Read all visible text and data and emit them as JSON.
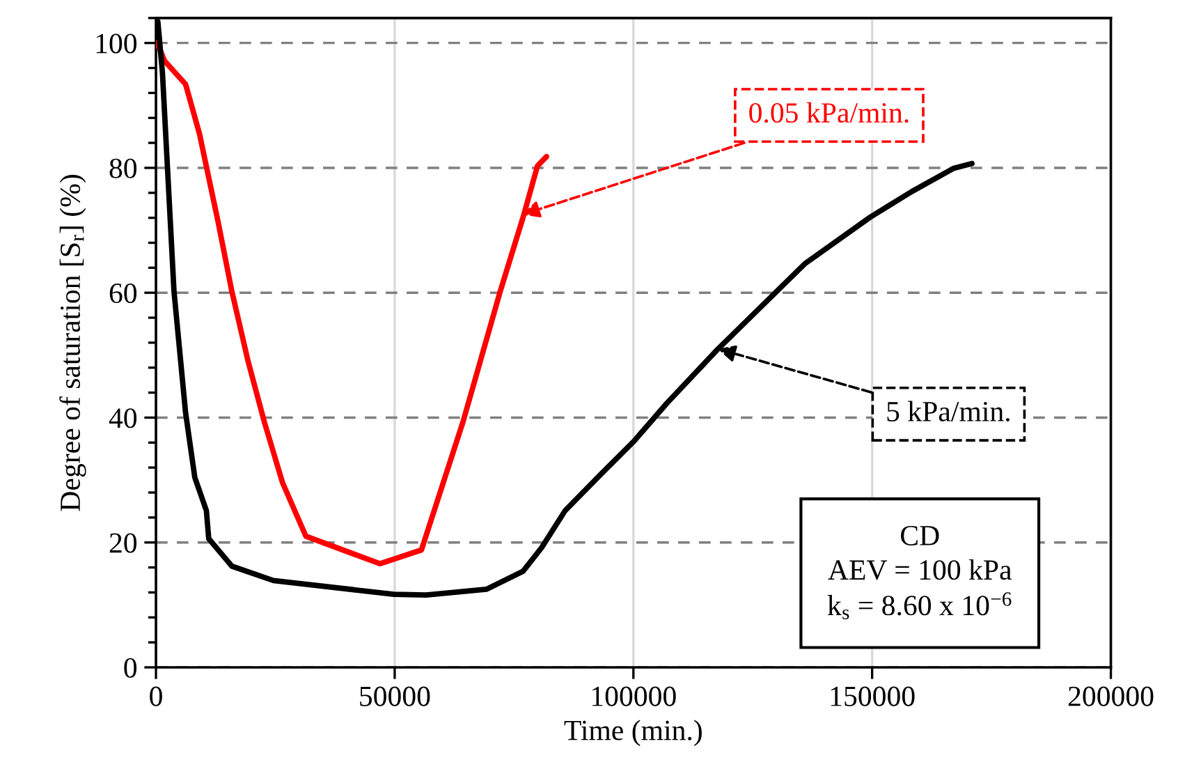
{
  "chart_data": {
    "type": "line",
    "xlabel": "Time (min.)",
    "ylabel": "Degree of saturation [S$_{r}$] (%)",
    "xlim": [
      0,
      200000
    ],
    "xticks": [
      0,
      50000,
      100000,
      150000,
      200000
    ],
    "ylim": [
      0,
      104
    ],
    "yticks": [
      0,
      20,
      40,
      60,
      80,
      100
    ],
    "grid": true,
    "series": [
      {
        "color": "#ff0000",
        "x": [
          200,
          1830,
          6200,
          9100,
          13000,
          15900,
          19300,
          22700,
          26500,
          31400,
          46900,
          55600,
          64300,
          72100,
          76900,
          79900,
          81800
        ],
        "values": [
          100.1,
          97.1,
          93.4,
          85.5,
          71.4,
          60.2,
          49.0,
          39.3,
          29.6,
          21.0,
          16.6,
          18.8,
          39.3,
          60.2,
          72.1,
          80.3,
          81.8
        ]
      },
      {
        "color": "#000000",
        "x": [
          400,
          1360,
          3780,
          6200,
          8140,
          10560,
          11050,
          15900,
          24600,
          49800,
          56600,
          69200,
          76900,
          80800,
          85700,
          93400,
          100200,
          107000,
          117600,
          136000,
          149600,
          158300,
          167000,
          170900
        ],
        "values": [
          103.4,
          95.2,
          60.2,
          40.8,
          30.4,
          25.1,
          20.6,
          16.2,
          13.9,
          11.7,
          11.6,
          12.5,
          15.4,
          19.2,
          25.1,
          31.1,
          36.3,
          42.3,
          50.9,
          64.7,
          72.1,
          76.2,
          79.9,
          80.7
        ]
      }
    ],
    "annotations": [
      {
        "text": "0.05 kPa/min.",
        "x": 76700,
        "y": 72.5
      },
      {
        "text": "5 kPa/min.",
        "x": 117700,
        "y": 51.0
      },
      "CD\nAEV = 100 kPa\nk$_{s}$ = 8.60 x 10$^{−6}$"
    ]
  }
}
